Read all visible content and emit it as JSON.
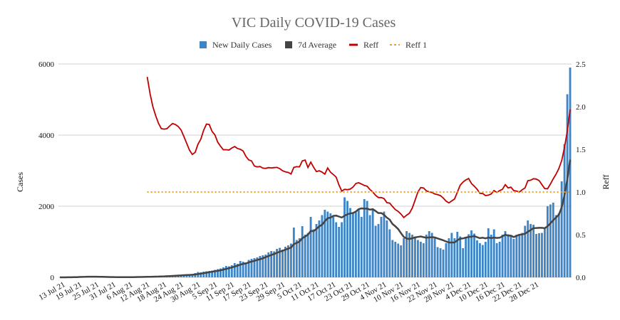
{
  "chart_data": {
    "type": "bar+line",
    "title": "VIC Daily COVID-19 Cases",
    "ylabel": "Cases",
    "y2label": "Reff",
    "ylim": [
      0,
      6000
    ],
    "y2lim": [
      0,
      2.5
    ],
    "yticks": [
      "0",
      "2000",
      "4000",
      "6000"
    ],
    "y2ticks": [
      "0.0",
      "0.5",
      "1.0",
      "1.5",
      "2.0",
      "2.5"
    ],
    "xticks": [
      "13 Jul 21",
      "19 Jul 21",
      "25 Jul 21",
      "31 Jul 21",
      "6 Aug 21",
      "12 Aug 21",
      "18 Aug 21",
      "24 Aug 21",
      "30 Aug 21",
      "5 Sep 21",
      "11 Sep 21",
      "17 Sep 21",
      "23 Sep 21",
      "29 Sep 21",
      "5 Oct 21",
      "11 Oct 21",
      "17 Oct 21",
      "23 Oct 21",
      "29 Oct 21",
      "4 Nov 21",
      "10 Nov 21",
      "16 Nov 21",
      "22 Nov 21",
      "28 Nov 21",
      "4 Dec 21",
      "10 Dec 21",
      "16 Dec 21",
      "22 Dec 21",
      "28 Dec 21"
    ],
    "legend": [
      "New Daily Cases",
      "7d Average",
      "Reff",
      "Reff 1"
    ],
    "colors": {
      "cases": "#3d85c6",
      "avg": "#444444",
      "reff": "#c00000",
      "reff1": "#f0a020"
    },
    "reff1_value": 1.0,
    "reff1_start_day": 31,
    "start_date": "13 Jul 21",
    "cases": [
      0,
      0,
      0,
      5,
      10,
      14,
      16,
      20,
      18,
      22,
      20,
      18,
      15,
      12,
      10,
      8,
      7,
      6,
      5,
      5,
      4,
      4,
      5,
      6,
      6,
      8,
      10,
      14,
      15,
      16,
      18,
      20,
      21,
      24,
      28,
      30,
      35,
      40,
      45,
      50,
      55,
      60,
      65,
      70,
      71,
      73,
      75,
      90,
      120,
      150,
      140,
      160,
      170,
      180,
      190,
      210,
      230,
      250,
      280,
      320,
      310,
      340,
      400,
      380,
      460,
      440,
      420,
      490,
      520,
      540,
      560,
      600,
      620,
      640,
      700,
      740,
      730,
      800,
      830,
      780,
      860,
      900,
      950,
      1400,
      1050,
      1100,
      1440,
      1200,
      1250,
      1700,
      1350,
      1500,
      1600,
      1750,
      1900,
      1850,
      1800,
      1700,
      1550,
      1420,
      1550,
      2250,
      2150,
      1950,
      1800,
      1830,
      1900,
      1700,
      2200,
      2150,
      1750,
      1900,
      1450,
      1500,
      1700,
      1850,
      1600,
      1350,
      1050,
      1000,
      950,
      900,
      1100,
      1300,
      1250,
      1200,
      1150,
      1050,
      1000,
      960,
      1200,
      1300,
      1250,
      1100,
      850,
      820,
      780,
      960,
      1100,
      1250,
      1100,
      1280,
      1150,
      820,
      1130,
      1210,
      1320,
      1230,
      1040,
      960,
      910,
      1000,
      1380,
      1200,
      1350,
      960,
      1000,
      1200,
      1300,
      1210,
      1180,
      1080,
      1200,
      1220,
      1250,
      1450,
      1600,
      1500,
      1480,
      1220,
      1240,
      1250,
      1380,
      2000,
      2050,
      2100,
      1750,
      1800,
      2700,
      3750,
      5150,
      5900
    ]
  }
}
